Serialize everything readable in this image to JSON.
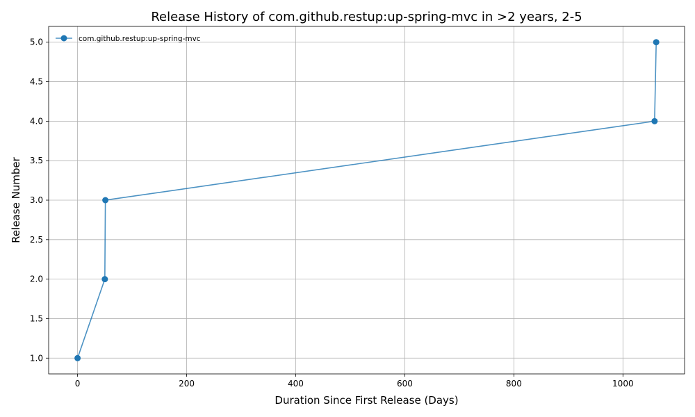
{
  "chart_data": {
    "type": "line",
    "title": "Release History of com.github.restup:up-spring-mvc in >2 years, 2-5",
    "xlabel": "Duration Since First Release (Days)",
    "ylabel": "Release Number",
    "xlim": [
      -53,
      1113
    ],
    "ylim": [
      0.8,
      5.2
    ],
    "xticks": [
      0,
      200,
      400,
      600,
      800,
      1000
    ],
    "yticks": [
      1.0,
      1.5,
      2.0,
      2.5,
      3.0,
      3.5,
      4.0,
      4.5,
      5.0
    ],
    "xtick_labels": [
      "0",
      "200",
      "400",
      "600",
      "800",
      "1000"
    ],
    "ytick_labels": [
      "1.0",
      "1.5",
      "2.0",
      "2.5",
      "3.0",
      "3.5",
      "4.0",
      "4.5",
      "5.0"
    ],
    "grid": true,
    "legend_position": "top-left",
    "series": [
      {
        "name": "com.github.restup:up-spring-mvc",
        "color": "#1f77b4",
        "marker": "circle",
        "x": [
          0,
          50,
          51,
          1058,
          1061
        ],
        "y": [
          1,
          2,
          3,
          4,
          5
        ]
      }
    ]
  }
}
